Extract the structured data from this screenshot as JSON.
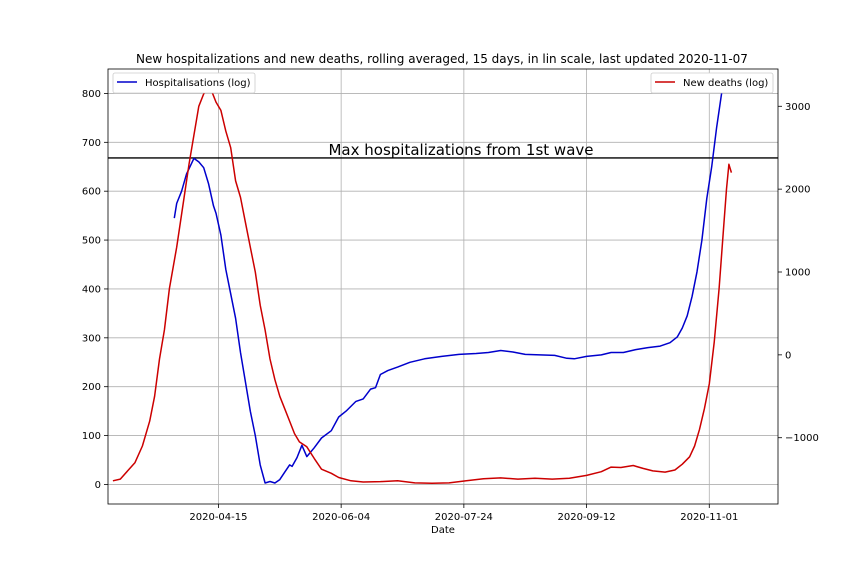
{
  "chart_data": {
    "type": "line",
    "title": "New hospitalizations and new deaths, rolling averaged, 15 days, in lin scale, last updated 2020-11-07",
    "xlabel": "Date",
    "x_ticks": [
      "2020-04-15",
      "2020-06-04",
      "2020-07-24",
      "2020-09-12",
      "2020-11-01"
    ],
    "x_range": [
      "2020-03-01",
      "2020-11-29"
    ],
    "left_axis": {
      "ylim": [
        -40,
        850
      ],
      "ticks": [
        0,
        100,
        200,
        300,
        400,
        500,
        600,
        700,
        800
      ]
    },
    "right_axis": {
      "ylim": [
        -1800,
        3450
      ],
      "ticks": [
        -1000,
        0,
        1000,
        2000,
        3000
      ],
      "tick_labels": [
        "−1000",
        "0",
        "1000",
        "2000",
        "3000"
      ]
    },
    "grid": true,
    "annotation": {
      "text": "Max hospitalizations from 1st wave",
      "y": 668,
      "axis": "left"
    },
    "series": [
      {
        "name": "Hospitalisations (log)",
        "axis": "left",
        "color": "#0000cc",
        "legend": "top-left",
        "points": [
          [
            "2020-03-28",
            545
          ],
          [
            "2020-03-29",
            575
          ],
          [
            "2020-03-31",
            600
          ],
          [
            "2020-04-02",
            635
          ],
          [
            "2020-04-05",
            667
          ],
          [
            "2020-04-07",
            660
          ],
          [
            "2020-04-09",
            648
          ],
          [
            "2020-04-11",
            615
          ],
          [
            "2020-04-13",
            570
          ],
          [
            "2020-04-14",
            555
          ],
          [
            "2020-04-16",
            510
          ],
          [
            "2020-04-18",
            440
          ],
          [
            "2020-04-20",
            390
          ],
          [
            "2020-04-22",
            340
          ],
          [
            "2020-04-24",
            270
          ],
          [
            "2020-04-26",
            210
          ],
          [
            "2020-04-28",
            150
          ],
          [
            "2020-04-30",
            100
          ],
          [
            "2020-05-02",
            40
          ],
          [
            "2020-05-04",
            3
          ],
          [
            "2020-05-06",
            6
          ],
          [
            "2020-05-08",
            3
          ],
          [
            "2020-05-10",
            10
          ],
          [
            "2020-05-12",
            25
          ],
          [
            "2020-05-14",
            40
          ],
          [
            "2020-05-15",
            37
          ],
          [
            "2020-05-17",
            55
          ],
          [
            "2020-05-19",
            80
          ],
          [
            "2020-05-21",
            57
          ],
          [
            "2020-05-24",
            75
          ],
          [
            "2020-05-27",
            95
          ],
          [
            "2020-05-31",
            110
          ],
          [
            "2020-06-03",
            138
          ],
          [
            "2020-06-06",
            150
          ],
          [
            "2020-06-10",
            170
          ],
          [
            "2020-06-13",
            175
          ],
          [
            "2020-06-16",
            195
          ],
          [
            "2020-06-18",
            198
          ],
          [
            "2020-06-20",
            225
          ],
          [
            "2020-06-23",
            233
          ],
          [
            "2020-06-27",
            240
          ],
          [
            "2020-07-02",
            250
          ],
          [
            "2020-07-08",
            257
          ],
          [
            "2020-07-15",
            262
          ],
          [
            "2020-07-22",
            266
          ],
          [
            "2020-07-29",
            268
          ],
          [
            "2020-08-03",
            270
          ],
          [
            "2020-08-08",
            274
          ],
          [
            "2020-08-13",
            271
          ],
          [
            "2020-08-18",
            266
          ],
          [
            "2020-08-24",
            265
          ],
          [
            "2020-08-30",
            264
          ],
          [
            "2020-09-04",
            258
          ],
          [
            "2020-09-07",
            257
          ],
          [
            "2020-09-12",
            262
          ],
          [
            "2020-09-18",
            265
          ],
          [
            "2020-09-22",
            270
          ],
          [
            "2020-09-27",
            270
          ],
          [
            "2020-10-02",
            276
          ],
          [
            "2020-10-07",
            280
          ],
          [
            "2020-10-12",
            283
          ],
          [
            "2020-10-16",
            290
          ],
          [
            "2020-10-19",
            302
          ],
          [
            "2020-10-21",
            320
          ],
          [
            "2020-10-23",
            345
          ],
          [
            "2020-10-25",
            385
          ],
          [
            "2020-10-27",
            435
          ],
          [
            "2020-10-29",
            500
          ],
          [
            "2020-10-31",
            585
          ],
          [
            "2020-11-02",
            650
          ],
          [
            "2020-11-04",
            730
          ],
          [
            "2020-11-06",
            800
          ],
          [
            "2020-11-07",
            818
          ],
          [
            "2020-11-09",
            815
          ]
        ]
      },
      {
        "name": "New deaths (log)",
        "axis": "right",
        "color": "#cc0000",
        "legend": "top-right",
        "points": [
          [
            "2020-03-03",
            -1520
          ],
          [
            "2020-03-06",
            -1500
          ],
          [
            "2020-03-09",
            -1400
          ],
          [
            "2020-03-12",
            -1300
          ],
          [
            "2020-03-15",
            -1100
          ],
          [
            "2020-03-18",
            -800
          ],
          [
            "2020-03-20",
            -500
          ],
          [
            "2020-03-22",
            -50
          ],
          [
            "2020-03-24",
            300
          ],
          [
            "2020-03-26",
            800
          ],
          [
            "2020-03-29",
            1300
          ],
          [
            "2020-04-01",
            1900
          ],
          [
            "2020-04-03",
            2300
          ],
          [
            "2020-04-05",
            2650
          ],
          [
            "2020-04-07",
            3000
          ],
          [
            "2020-04-09",
            3150
          ],
          [
            "2020-04-11",
            3230
          ],
          [
            "2020-04-12",
            3200
          ],
          [
            "2020-04-14",
            3050
          ],
          [
            "2020-04-16",
            2950
          ],
          [
            "2020-04-18",
            2700
          ],
          [
            "2020-04-20",
            2500
          ],
          [
            "2020-04-22",
            2100
          ],
          [
            "2020-04-24",
            1900
          ],
          [
            "2020-04-26",
            1600
          ],
          [
            "2020-04-28",
            1300
          ],
          [
            "2020-04-30",
            1000
          ],
          [
            "2020-05-02",
            600
          ],
          [
            "2020-05-04",
            300
          ],
          [
            "2020-05-06",
            -50
          ],
          [
            "2020-05-08",
            -300
          ],
          [
            "2020-05-10",
            -500
          ],
          [
            "2020-05-12",
            -650
          ],
          [
            "2020-05-14",
            -800
          ],
          [
            "2020-05-16",
            -950
          ],
          [
            "2020-05-18",
            -1050
          ],
          [
            "2020-05-21",
            -1110
          ],
          [
            "2020-05-24",
            -1250
          ],
          [
            "2020-05-27",
            -1380
          ],
          [
            "2020-05-31",
            -1430
          ],
          [
            "2020-06-03",
            -1480
          ],
          [
            "2020-06-08",
            -1520
          ],
          [
            "2020-06-13",
            -1535
          ],
          [
            "2020-06-20",
            -1530
          ],
          [
            "2020-06-27",
            -1520
          ],
          [
            "2020-07-04",
            -1545
          ],
          [
            "2020-07-11",
            -1550
          ],
          [
            "2020-07-18",
            -1545
          ],
          [
            "2020-07-25",
            -1520
          ],
          [
            "2020-08-01",
            -1495
          ],
          [
            "2020-08-08",
            -1485
          ],
          [
            "2020-08-15",
            -1500
          ],
          [
            "2020-08-22",
            -1490
          ],
          [
            "2020-08-29",
            -1500
          ],
          [
            "2020-09-05",
            -1490
          ],
          [
            "2020-09-12",
            -1455
          ],
          [
            "2020-09-18",
            -1410
          ],
          [
            "2020-09-22",
            -1355
          ],
          [
            "2020-09-26",
            -1360
          ],
          [
            "2020-10-01",
            -1335
          ],
          [
            "2020-10-05",
            -1370
          ],
          [
            "2020-10-09",
            -1400
          ],
          [
            "2020-10-14",
            -1415
          ],
          [
            "2020-10-18",
            -1390
          ],
          [
            "2020-10-21",
            -1320
          ],
          [
            "2020-10-24",
            -1230
          ],
          [
            "2020-10-26",
            -1100
          ],
          [
            "2020-10-28",
            -900
          ],
          [
            "2020-10-30",
            -650
          ],
          [
            "2020-11-01",
            -350
          ],
          [
            "2020-11-03",
            150
          ],
          [
            "2020-11-05",
            800
          ],
          [
            "2020-11-07",
            1600
          ],
          [
            "2020-11-08",
            2000
          ],
          [
            "2020-11-09",
            2300
          ],
          [
            "2020-11-10",
            2200
          ]
        ]
      }
    ]
  }
}
